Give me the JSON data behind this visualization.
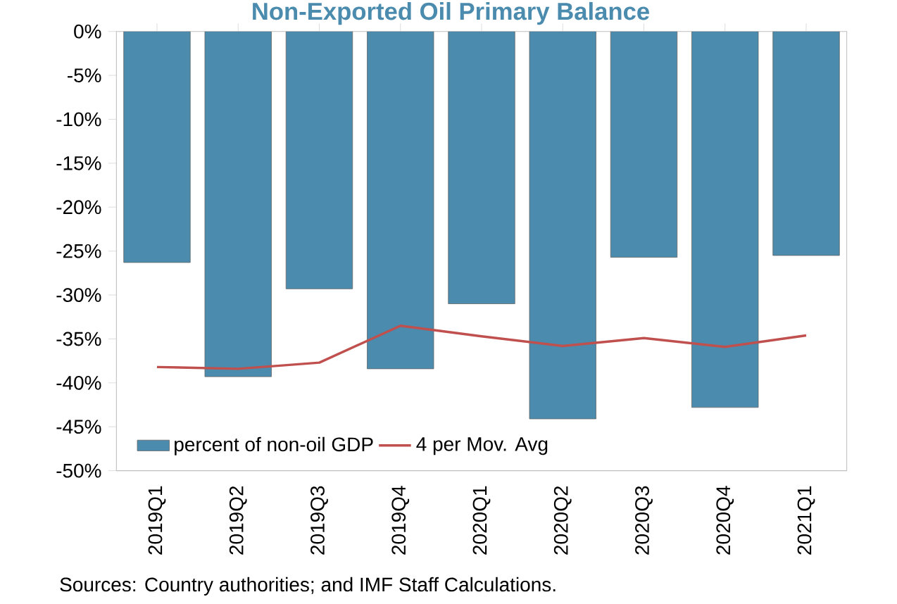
{
  "chart_data": {
    "type": "bar",
    "title": "Non-Exported Oil Primary Balance",
    "categories": [
      "2019Q1",
      "2019Q2",
      "2019Q3",
      "2019Q4",
      "2020Q1",
      "2020Q2",
      "2020Q3",
      "2020Q4",
      "2021Q1"
    ],
    "series": [
      {
        "name": "percent of non-oil GDP",
        "color": "#4a8bae",
        "values": [
          -26.3,
          -39.3,
          -29.3,
          -38.4,
          -31.0,
          -44.1,
          -25.7,
          -42.8,
          -25.5
        ]
      },
      {
        "name": "4 per Mov. Avg",
        "type": "line",
        "color": "#c0504d",
        "values": [
          -38.2,
          -38.4,
          -37.7,
          -33.5,
          -34.7,
          -35.8,
          -34.9,
          -35.9,
          -34.6
        ]
      }
    ],
    "ylim": [
      -50,
      0
    ],
    "yticks": [
      {
        "value": 0,
        "label": "0%"
      },
      {
        "value": -5,
        "label": "-5%"
      },
      {
        "value": -10,
        "label": "-10%"
      },
      {
        "value": -15,
        "label": "-15%"
      },
      {
        "value": -20,
        "label": "-20%"
      },
      {
        "value": -25,
        "label": "-25%"
      },
      {
        "value": -30,
        "label": "-30%"
      },
      {
        "value": -35,
        "label": "-35%"
      },
      {
        "value": -40,
        "label": "-40%"
      },
      {
        "value": -45,
        "label": "-45%"
      },
      {
        "value": -50,
        "label": "-50%"
      }
    ],
    "legend": "bottom left",
    "annotations": [
      "Sources: Country authorities; and IMF Staff Calculations."
    ]
  }
}
